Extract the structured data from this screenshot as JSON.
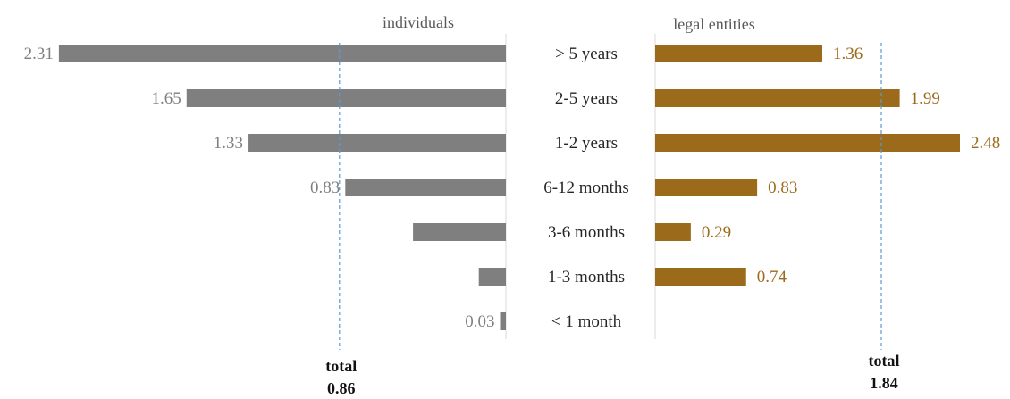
{
  "chart_data": {
    "type": "bar",
    "orientation": "horizontal",
    "layout": "back-to-back",
    "categories": [
      "> 5 years",
      "2-5 years",
      "1-2 years",
      "6-12 months",
      "3-6 months",
      "1-3 months",
      "< 1 month"
    ],
    "series": [
      {
        "name": "individuals",
        "values": [
          2.31,
          1.65,
          1.33,
          0.83,
          0.48,
          0.14,
          0.03
        ],
        "labels": [
          "2.31",
          "1.65",
          "1.33",
          "0.83",
          "",
          "",
          "0.03"
        ],
        "color": "#7f7f7f",
        "total_label": "total",
        "total_value": "0.86",
        "total": 0.86
      },
      {
        "name": "legal entities",
        "values": [
          1.36,
          1.99,
          2.48,
          0.83,
          0.29,
          0.74,
          0
        ],
        "labels": [
          "1.36",
          "1.99",
          "2.48",
          "0.83",
          "0.29",
          "0.74",
          ""
        ],
        "color": "#9c6a1b",
        "total_label": "total",
        "total_value": "1.84",
        "total": 1.84
      }
    ],
    "reference_line_color": "#5b9bd5",
    "grid": false,
    "legend": "none"
  }
}
